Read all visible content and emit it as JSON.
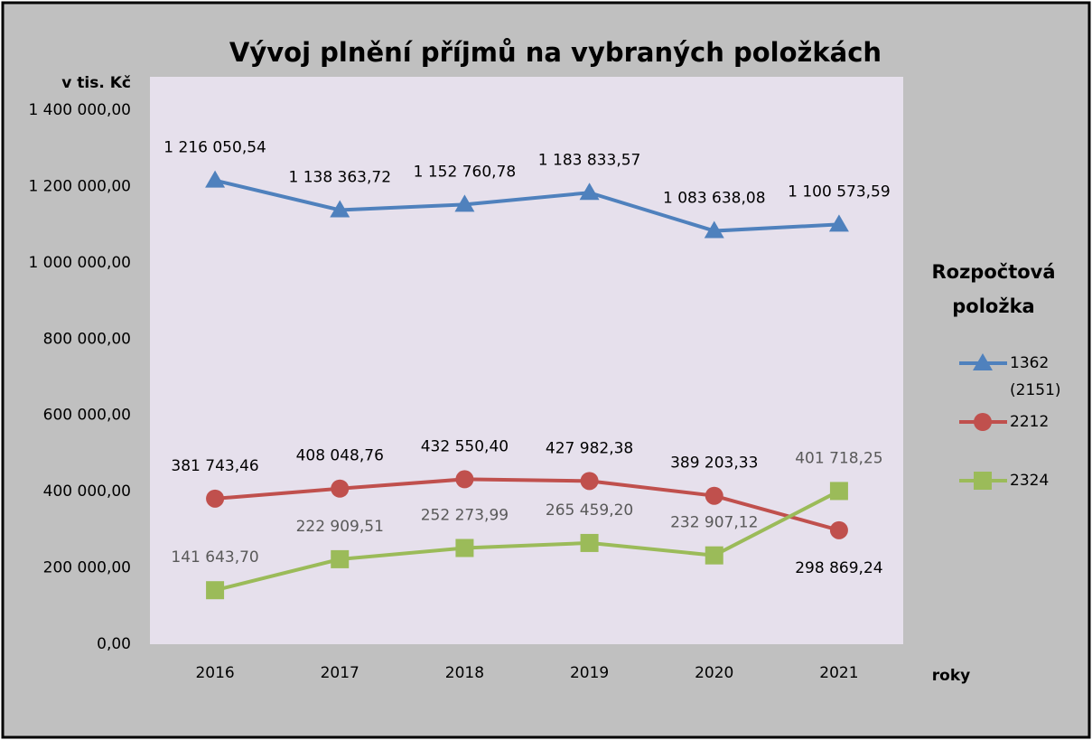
{
  "chart_data": {
    "type": "line",
    "title": "Vývoj plnění příjmů na vybraných položkách",
    "y_label": "v tis. Kč",
    "x_label": "roky",
    "legend_title": "Rozpočtová položka",
    "legend": "right",
    "categories": [
      "2016",
      "2017",
      "2018",
      "2019",
      "2020",
      "2021"
    ],
    "ylim": [
      0,
      1400000
    ],
    "yticks": [
      {
        "value": 0,
        "label": "0,00"
      },
      {
        "value": 200000,
        "label": "200 000,00"
      },
      {
        "value": 400000,
        "label": "400 000,00"
      },
      {
        "value": 600000,
        "label": "600 000,00"
      },
      {
        "value": 800000,
        "label": "800 000,00"
      },
      {
        "value": 1000000,
        "label": "1 000 000,00"
      },
      {
        "value": 1200000,
        "label": "1 200 000,00"
      },
      {
        "value": 1400000,
        "label": "1 400 000,00"
      }
    ],
    "series": [
      {
        "name": "1362 (2151)",
        "color": "#4f81bd",
        "marker": "triangle",
        "values": [
          1216050.54,
          1138363.72,
          1152760.78,
          1183833.57,
          1083638.08,
          1100573.59
        ],
        "value_labels": [
          "1 216 050,54",
          "1 138 363,72",
          "1 152 760,78",
          "1 183 833,57",
          "1 083 638,08",
          "1 100 573,59"
        ]
      },
      {
        "name": "2212",
        "color": "#c0504d",
        "marker": "circle",
        "values": [
          381743.46,
          408048.76,
          432550.4,
          427982.38,
          389203.33,
          298869.24
        ],
        "value_labels": [
          "381 743,46",
          "408 048,76",
          "432 550,40",
          "427 982,38",
          "389 203,33",
          "298 869,24"
        ]
      },
      {
        "name": "2324",
        "color": "#9bbb59",
        "marker": "square",
        "values": [
          141643.7,
          222909.51,
          252273.99,
          265459.2,
          232907.12,
          401718.25
        ],
        "value_labels": [
          "141 643,70",
          "222 909,51",
          "252 273,99",
          "265 459,20",
          "232 907,12",
          "401 718,25"
        ]
      }
    ]
  }
}
